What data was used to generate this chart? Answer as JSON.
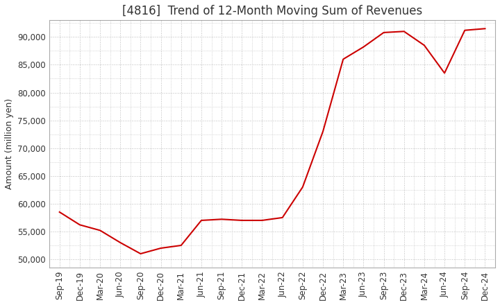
{
  "title": "[4816]  Trend of 12-Month Moving Sum of Revenues",
  "ylabel": "Amount (million yen)",
  "background_color": "#ffffff",
  "plot_background_color": "#ffffff",
  "line_color": "#cc0000",
  "grid_color": "#bbbbbb",
  "grid_style": ":",
  "x_labels": [
    "Sep-19",
    "Dec-19",
    "Mar-20",
    "Jun-20",
    "Sep-20",
    "Dec-20",
    "Mar-21",
    "Jun-21",
    "Sep-21",
    "Dec-21",
    "Mar-22",
    "Jun-22",
    "Sep-22",
    "Dec-22",
    "Mar-23",
    "Jun-23",
    "Sep-23",
    "Dec-23",
    "Mar-24",
    "Jun-24",
    "Sep-24",
    "Dec-24"
  ],
  "values": [
    58500,
    56200,
    55200,
    53000,
    51000,
    52000,
    52500,
    57000,
    57200,
    57000,
    57000,
    57500,
    63000,
    73000,
    86000,
    88200,
    90800,
    91000,
    88500,
    83500,
    91200,
    91500
  ],
  "ylim": [
    48500,
    93000
  ],
  "yticks": [
    50000,
    55000,
    60000,
    65000,
    70000,
    75000,
    80000,
    85000,
    90000
  ],
  "title_fontsize": 12,
  "axis_fontsize": 9,
  "tick_fontsize": 8.5,
  "line_width": 1.5
}
